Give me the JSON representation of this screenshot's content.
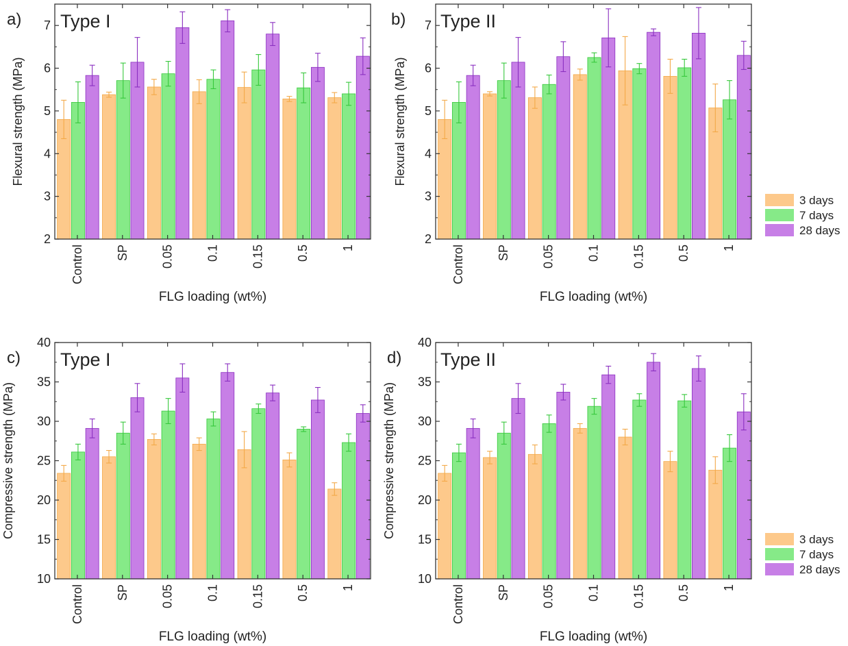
{
  "colors": {
    "3 days": "#fdc98b",
    "7 days": "#86ea88",
    "28 days": "#c77fe6",
    "err3": "#f3a948",
    "err7": "#37c83c",
    "err28": "#8a2fc0"
  },
  "legends": [
    {
      "entries": [
        "3 days",
        "7 days",
        "28 days"
      ]
    },
    {
      "entries": [
        "3 days",
        "7 days",
        "28 days"
      ]
    }
  ],
  "chart_data": [
    {
      "type": "bar",
      "panel_label": "a)",
      "title": "Type I",
      "xlabel": "FLG loading (wt%)",
      "ylabel": "Flexural strength (MPa)",
      "ylim": [
        2,
        7.5
      ],
      "yticks": [
        2,
        3,
        4,
        5,
        6,
        7
      ],
      "categories": [
        "Control",
        "SP",
        "0.05",
        "0.1",
        "0.15",
        "0.5",
        "1"
      ],
      "series": [
        {
          "name": "3 days",
          "values": [
            4.8,
            5.38,
            5.56,
            5.45,
            5.55,
            5.28,
            5.31
          ],
          "errors": [
            0.45,
            0.06,
            0.18,
            0.28,
            0.36,
            0.06,
            0.12
          ]
        },
        {
          "name": "7 days",
          "values": [
            5.2,
            5.71,
            5.87,
            5.74,
            5.96,
            5.54,
            5.4
          ],
          "errors": [
            0.48,
            0.41,
            0.29,
            0.22,
            0.36,
            0.35,
            0.27
          ]
        },
        {
          "name": "28 days",
          "values": [
            5.83,
            6.14,
            6.95,
            7.11,
            6.8,
            6.02,
            6.28
          ],
          "errors": [
            0.24,
            0.58,
            0.37,
            0.26,
            0.27,
            0.33,
            0.43
          ]
        }
      ]
    },
    {
      "type": "bar",
      "panel_label": "b)",
      "title": "Type II",
      "xlabel": "FLG loading (wt%)",
      "ylabel": "Flexural strength (MPa)",
      "ylim": [
        2,
        7.5
      ],
      "yticks": [
        2,
        3,
        4,
        5,
        6,
        7
      ],
      "categories": [
        "Control",
        "SP",
        "0.05",
        "0.1",
        "0.15",
        "0.5",
        "1"
      ],
      "series": [
        {
          "name": "3 days",
          "values": [
            4.8,
            5.4,
            5.31,
            5.85,
            5.94,
            5.81,
            5.07
          ],
          "errors": [
            0.45,
            0.05,
            0.25,
            0.13,
            0.8,
            0.4,
            0.56
          ]
        },
        {
          "name": "7 days",
          "values": [
            5.2,
            5.71,
            5.62,
            6.25,
            5.99,
            6.01,
            5.26
          ],
          "errors": [
            0.48,
            0.41,
            0.22,
            0.11,
            0.12,
            0.2,
            0.45
          ]
        },
        {
          "name": "28 days",
          "values": [
            5.83,
            6.14,
            6.27,
            6.71,
            6.84,
            6.82,
            6.3
          ],
          "errors": [
            0.24,
            0.58,
            0.35,
            0.68,
            0.08,
            0.6,
            0.33
          ]
        }
      ]
    },
    {
      "type": "bar",
      "panel_label": "c)",
      "title": "Type I",
      "xlabel": "FLG loading (wt%)",
      "ylabel": "Compressive strength (MPa)",
      "ylim": [
        10,
        40
      ],
      "yticks": [
        10,
        15,
        20,
        25,
        30,
        35,
        40
      ],
      "categories": [
        "Control",
        "SP",
        "0.05",
        "0.1",
        "0.15",
        "0.5",
        "1"
      ],
      "series": [
        {
          "name": "3 days",
          "values": [
            23.4,
            25.5,
            27.7,
            27.1,
            26.4,
            25.1,
            21.4
          ],
          "errors": [
            1.0,
            0.8,
            0.7,
            0.8,
            2.3,
            0.9,
            0.8
          ]
        },
        {
          "name": "7 days",
          "values": [
            26.1,
            28.5,
            31.3,
            30.3,
            31.6,
            29.0,
            27.3
          ],
          "errors": [
            1.0,
            1.4,
            1.6,
            0.9,
            0.6,
            0.3,
            1.1
          ]
        },
        {
          "name": "28 days",
          "values": [
            29.1,
            33.0,
            35.5,
            36.2,
            33.6,
            32.7,
            31.0
          ],
          "errors": [
            1.2,
            1.8,
            1.8,
            1.1,
            1.0,
            1.6,
            1.1
          ]
        }
      ]
    },
    {
      "type": "bar",
      "panel_label": "d)",
      "title": "Type II",
      "xlabel": "FLG loading (wt%)",
      "ylabel": "Compressive strength (MPa)",
      "ylim": [
        10,
        40
      ],
      "yticks": [
        10,
        15,
        20,
        25,
        30,
        35,
        40
      ],
      "categories": [
        "Control",
        "SP",
        "0.05",
        "0.1",
        "0.15",
        "0.5",
        "1"
      ],
      "series": [
        {
          "name": "3 days",
          "values": [
            23.4,
            25.4,
            25.8,
            29.1,
            28.0,
            24.9,
            23.8
          ],
          "errors": [
            1.0,
            0.8,
            1.2,
            0.6,
            1.0,
            1.3,
            1.7
          ]
        },
        {
          "name": "7 days",
          "values": [
            26.0,
            28.5,
            29.7,
            31.9,
            32.7,
            32.6,
            26.6
          ],
          "errors": [
            1.1,
            1.4,
            1.1,
            1.0,
            0.8,
            0.8,
            1.7
          ]
        },
        {
          "name": "28 days",
          "values": [
            29.1,
            32.9,
            33.7,
            35.9,
            37.5,
            36.7,
            31.2
          ],
          "errors": [
            1.2,
            1.9,
            1.0,
            1.1,
            1.1,
            1.6,
            2.3
          ]
        }
      ]
    }
  ]
}
